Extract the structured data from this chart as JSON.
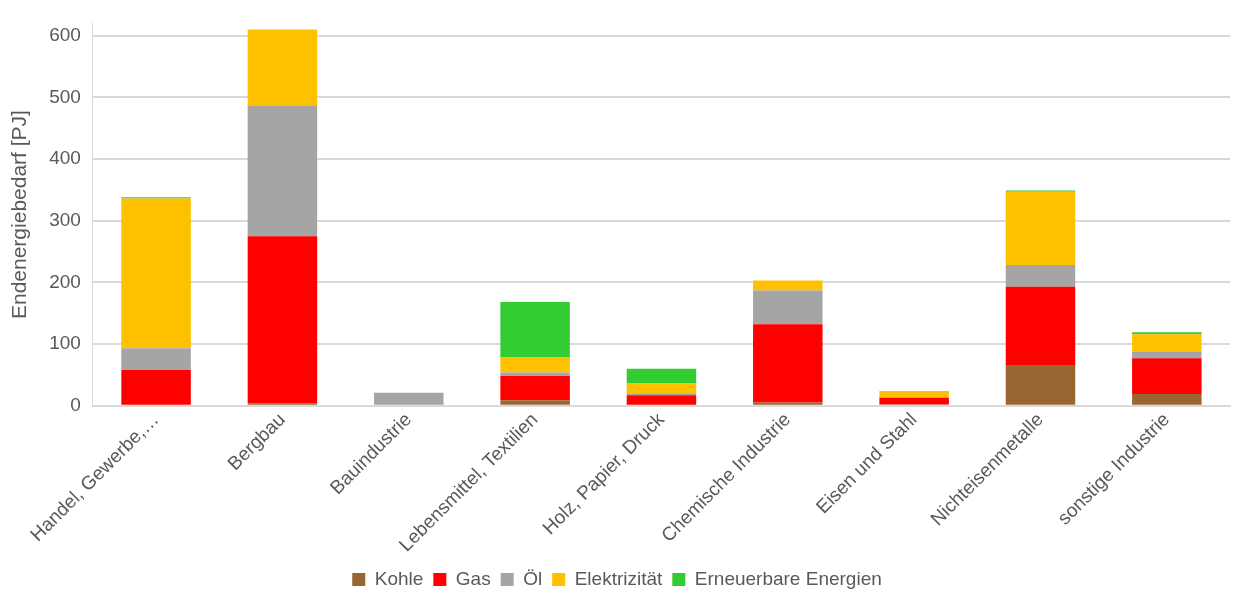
{
  "chart_data": {
    "type": "bar",
    "stacked": true,
    "ylabel": "Endenergiebedarf [PJ]",
    "categories": [
      "Handel, Gewerbe,…",
      "Bergbau",
      "Bauindustrie",
      "Lebensmittel, Textilien",
      "Holz, Papier, Druck",
      "Chemische Industrie",
      "Eisen und Stahl",
      "Nichteisenmetalle",
      "sonstige Industrie"
    ],
    "series": [
      {
        "name": "Kohle",
        "color": "#996633",
        "values": [
          0,
          4,
          0,
          9,
          null,
          5,
          2,
          66,
          19
        ]
      },
      {
        "name": "Gas",
        "color": "#ff0000",
        "values": [
          58,
          271,
          null,
          39,
          17,
          127,
          11,
          127,
          58
        ]
      },
      {
        "name": "Öl",
        "color": "#a5a5a5",
        "values": [
          35,
          211,
          21,
          6,
          3,
          55,
          0,
          35,
          11
        ]
      },
      {
        "name": "Elektrizität",
        "color": "#ffc000",
        "values": [
          243,
          124,
          0,
          25,
          17,
          16,
          11,
          119,
          28
        ]
      },
      {
        "name": "Erneuerbare Energien",
        "color": "#33cc33",
        "values": [
          2,
          0,
          0,
          89,
          23,
          null,
          0,
          2,
          3
        ]
      }
    ],
    "ylim": [
      0,
      620
    ],
    "yticks": [
      0,
      100,
      200,
      300,
      400,
      500,
      600
    ],
    "grid": "y",
    "legend": "bottom"
  }
}
